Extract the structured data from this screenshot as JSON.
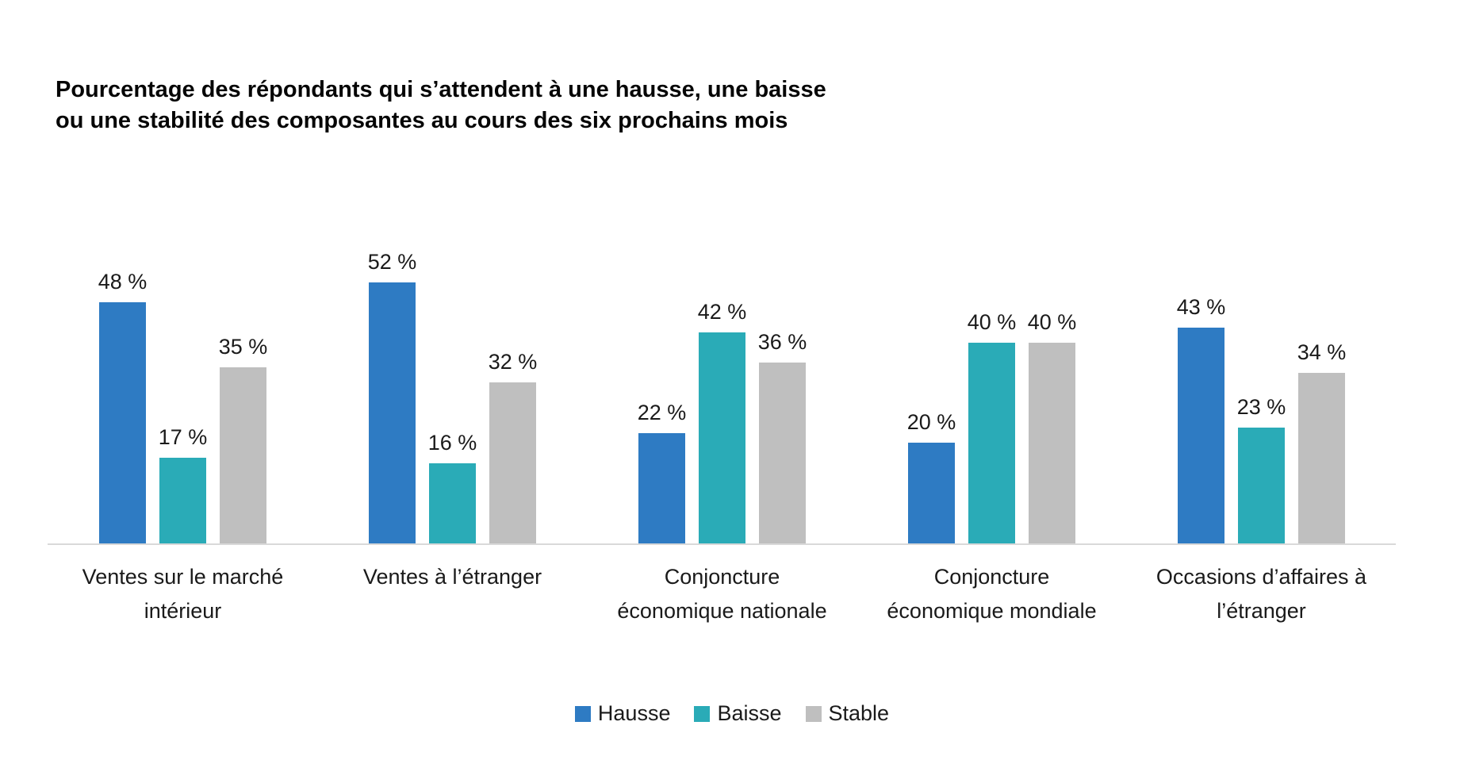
{
  "title": {
    "line1": "Pourcentage des répondants qui s’attendent à une hausse, une baisse",
    "line2": "ou une stabilité des composantes au cours des six prochains mois"
  },
  "chart_data": {
    "type": "bar",
    "title": "Pourcentage des répondants qui s’attendent à une hausse, une baisse ou une stabilité des composantes au cours des six prochains mois",
    "categories": [
      "Ventes sur le marché intérieur",
      "Ventes à l’étranger",
      "Conjoncture économique nationale",
      "Conjoncture économique mondiale",
      "Occasions d’affaires à l’étranger"
    ],
    "category_lines": [
      [
        "Ventes sur le marché",
        "intérieur"
      ],
      [
        "Ventes à l’étranger"
      ],
      [
        "Conjoncture",
        "économique nationale"
      ],
      [
        "Conjoncture",
        "économique mondiale"
      ],
      [
        "Occasions d’affaires à",
        "l’étranger"
      ]
    ],
    "series": [
      {
        "name": "Hausse",
        "color": "#2e7bc3",
        "values": [
          48,
          52,
          22,
          20,
          43
        ]
      },
      {
        "name": "Baisse",
        "color": "#2aabb7",
        "values": [
          17,
          16,
          42,
          40,
          23
        ]
      },
      {
        "name": "Stable",
        "color": "#bfbfbf",
        "values": [
          35,
          32,
          36,
          40,
          34
        ]
      }
    ],
    "value_suffix": " %",
    "data_labels": true,
    "ylim": [
      0,
      57
    ],
    "grid": false,
    "legend_position": "bottom",
    "axis_line_color": "#d9d9d9",
    "text_color": "#1a1a1a"
  },
  "legend": {
    "items": [
      {
        "label": "Hausse",
        "color": "#2e7bc3"
      },
      {
        "label": "Baisse",
        "color": "#2aabb7"
      },
      {
        "label": "Stable",
        "color": "#bfbfbf"
      }
    ]
  }
}
